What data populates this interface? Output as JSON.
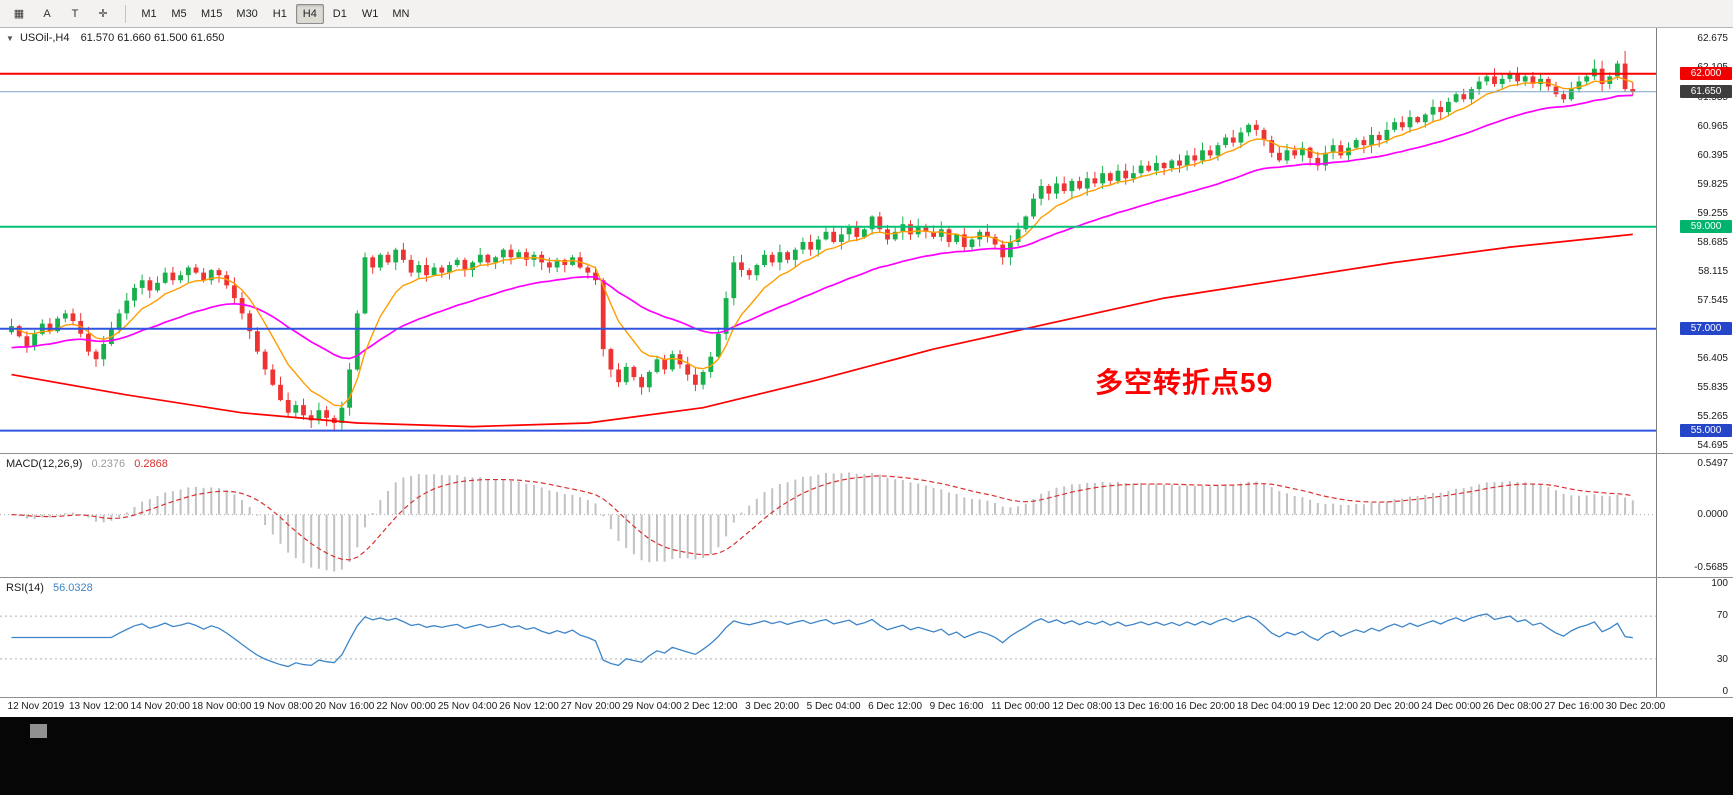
{
  "toolbar": {
    "tool_buttons": [
      {
        "name": "chart-type",
        "glyph": "▦"
      },
      {
        "name": "pointer-a",
        "glyph": "A"
      },
      {
        "name": "text-tool",
        "glyph": "T"
      },
      {
        "name": "crosshair-tool",
        "glyph": "✛"
      }
    ],
    "timeframes": [
      {
        "label": "M1",
        "active": false
      },
      {
        "label": "M5",
        "active": false
      },
      {
        "label": "M15",
        "active": false
      },
      {
        "label": "M30",
        "active": false
      },
      {
        "label": "H1",
        "active": false
      },
      {
        "label": "H4",
        "active": true
      },
      {
        "label": "D1",
        "active": false
      },
      {
        "label": "W1",
        "active": false
      },
      {
        "label": "MN",
        "active": false
      }
    ]
  },
  "chart": {
    "collapse_glyph": "▼",
    "symbol_title": "USOil-,H4",
    "ohlc_text": "61.570 61.660 61.500 61.650",
    "up_color": "#18b04d",
    "down_color": "#ee3432",
    "annotation": {
      "text": "多空转折点59",
      "color": "#ff0000"
    },
    "price_axis_ticks": [
      "62.675",
      "62.105",
      "61.535",
      "60.965",
      "60.395",
      "59.825",
      "59.255",
      "58.685",
      "58.115",
      "57.545",
      "56.975",
      "56.405",
      "55.835",
      "55.265",
      "54.695"
    ],
    "levels": [
      {
        "price": 62.0,
        "label": "62.000",
        "line_color": "#ff0000",
        "badge_color": "#f20000",
        "width": 2
      },
      {
        "price": 61.65,
        "label": "61.650",
        "line_color": "#7aa3c9",
        "badge_color": "#3d3d3d",
        "width": 1
      },
      {
        "price": 59.0,
        "label": "59.000",
        "line_color": "#00c176",
        "badge_color": "#00b46e",
        "width": 2
      },
      {
        "price": 57.0,
        "label": "57.000",
        "line_color": "#2f55e0",
        "badge_color": "#2546c8",
        "width": 2
      },
      {
        "price": 55.0,
        "label": "55.000",
        "line_color": "#2f55e0",
        "badge_color": "#2546c8",
        "width": 2
      }
    ],
    "y_min": 54.62,
    "y_max": 62.84,
    "ma_colors": {
      "fast": "#ff9d00",
      "mid": "#ff00ff",
      "slow": "#ff0000"
    }
  },
  "chart_data": {
    "type": "candlestick",
    "symbol": "USOil",
    "timeframe": "H4",
    "title": "USOil-,H4 61.570 61.660 61.500 61.650",
    "ohlc_current": {
      "open": 61.57,
      "high": 61.66,
      "low": 61.5,
      "close": 61.65
    },
    "ylim": [
      54.62,
      62.84
    ],
    "closes": [
      57.05,
      56.85,
      56.65,
      56.9,
      57.1,
      56.95,
      57.2,
      57.3,
      57.15,
      56.9,
      56.55,
      56.4,
      56.7,
      57.0,
      57.3,
      57.55,
      57.8,
      57.95,
      57.75,
      57.9,
      58.1,
      57.95,
      58.05,
      58.2,
      58.1,
      57.95,
      58.15,
      58.05,
      57.85,
      57.6,
      57.3,
      56.95,
      56.55,
      56.2,
      55.9,
      55.6,
      55.35,
      55.5,
      55.3,
      55.2,
      55.4,
      55.25,
      55.15,
      55.45,
      56.2,
      57.3,
      58.4,
      58.2,
      58.45,
      58.3,
      58.55,
      58.35,
      58.1,
      58.25,
      58.05,
      58.2,
      58.1,
      58.25,
      58.35,
      58.15,
      58.3,
      58.45,
      58.3,
      58.4,
      58.55,
      58.4,
      58.5,
      58.35,
      58.45,
      58.3,
      58.2,
      58.35,
      58.25,
      58.4,
      58.2,
      58.1,
      57.95,
      56.6,
      56.2,
      55.95,
      56.25,
      56.05,
      55.85,
      56.15,
      56.4,
      56.2,
      56.5,
      56.3,
      56.1,
      55.9,
      56.15,
      56.45,
      56.9,
      57.6,
      58.3,
      58.15,
      58.05,
      58.25,
      58.45,
      58.3,
      58.5,
      58.35,
      58.55,
      58.7,
      58.55,
      58.75,
      58.9,
      58.7,
      58.85,
      59.0,
      58.8,
      58.95,
      59.2,
      58.95,
      58.75,
      58.9,
      59.05,
      58.85,
      59.0,
      58.9,
      58.8,
      58.95,
      58.7,
      58.85,
      58.6,
      58.75,
      58.9,
      58.8,
      58.65,
      58.4,
      58.7,
      58.95,
      59.2,
      59.55,
      59.8,
      59.65,
      59.85,
      59.7,
      59.9,
      59.75,
      59.95,
      59.85,
      60.05,
      59.9,
      60.1,
      59.95,
      60.05,
      60.2,
      60.1,
      60.25,
      60.15,
      60.3,
      60.2,
      60.4,
      60.3,
      60.5,
      60.4,
      60.6,
      60.75,
      60.65,
      60.85,
      61.0,
      60.9,
      60.7,
      60.45,
      60.3,
      60.5,
      60.4,
      60.55,
      60.35,
      60.2,
      60.45,
      60.6,
      60.4,
      60.55,
      60.7,
      60.6,
      60.8,
      60.7,
      60.9,
      61.05,
      60.95,
      61.15,
      61.05,
      61.2,
      61.35,
      61.25,
      61.45,
      61.6,
      61.5,
      61.7,
      61.85,
      61.95,
      61.8,
      61.9,
      62.0,
      61.85,
      61.95,
      61.8,
      61.9,
      61.75,
      61.6,
      61.5,
      61.7,
      61.85,
      61.95,
      62.1,
      61.8,
      61.95,
      62.2,
      61.7,
      61.65
    ],
    "wick_overrides": {
      "42": {
        "low": 54.98
      },
      "206": {
        "high": 62.28
      },
      "210": {
        "high": 62.45
      }
    },
    "red_ma_points": [
      [
        0,
        56.1
      ],
      [
        15,
        55.7
      ],
      [
        30,
        55.35
      ],
      [
        45,
        55.15
      ],
      [
        60,
        55.08
      ],
      [
        75,
        55.15
      ],
      [
        90,
        55.45
      ],
      [
        105,
        56.0
      ],
      [
        120,
        56.6
      ],
      [
        135,
        57.1
      ],
      [
        150,
        57.6
      ],
      [
        165,
        57.95
      ],
      [
        180,
        58.3
      ],
      [
        195,
        58.6
      ],
      [
        211,
        58.85
      ]
    ],
    "time_labels": [
      "12 Nov 2019",
      "13 Nov 12:00",
      "14 Nov 20:00",
      "18 Nov 00:00",
      "19 Nov 08:00",
      "20 Nov 16:00",
      "22 Nov 00:00",
      "25 Nov 04:00",
      "26 Nov 12:00",
      "27 Nov 20:00",
      "29 Nov 04:00",
      "2 Dec 12:00",
      "3 Dec 20:00",
      "5 Dec 04:00",
      "6 Dec 12:00",
      "9 Dec 16:00",
      "11 Dec 00:00",
      "12 Dec 08:00",
      "13 Dec 16:00",
      "16 Dec 20:00",
      "18 Dec 04:00",
      "19 Dec 12:00",
      "20 Dec 20:00",
      "24 Dec 00:00",
      "26 Dec 08:00",
      "27 Dec 16:00",
      "30 Dec 20:00"
    ],
    "macd": {
      "label": "MACD(12,26,9)",
      "main_value": "0.2376",
      "signal_value": "0.2868",
      "axis_labels": [
        "0.5497",
        "0.0000",
        "-0.5685"
      ],
      "scale_max": 0.6,
      "scale_min": -0.62,
      "histogram_color": "#c2c2c2",
      "signal_color": "#d93030"
    },
    "rsi": {
      "label": "RSI(14)",
      "value": "56.0328",
      "axis_labels": [
        "100",
        "70",
        "30",
        "0"
      ],
      "level_lines": [
        70,
        30
      ],
      "line_color": "#3d85c8"
    }
  }
}
